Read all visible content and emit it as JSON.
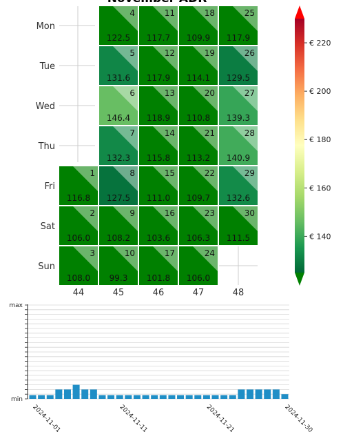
{
  "chart_data": [
    {
      "type": "heatmap",
      "title": "November ADR",
      "weekday_labels": [
        "Mon",
        "Tue",
        "Wed",
        "Thu",
        "Fri",
        "Sat",
        "Sun"
      ],
      "week_labels": [
        "44",
        "45",
        "46",
        "47",
        "48"
      ],
      "cells": [
        {
          "day": "1",
          "week": "44",
          "weekday": "Fri",
          "value": "116.8"
        },
        {
          "day": "2",
          "week": "44",
          "weekday": "Sat",
          "value": "106.0"
        },
        {
          "day": "3",
          "week": "44",
          "weekday": "Sun",
          "value": "108.0"
        },
        {
          "day": "4",
          "week": "45",
          "weekday": "Mon",
          "value": "122.5"
        },
        {
          "day": "5",
          "week": "45",
          "weekday": "Tue",
          "value": "131.6"
        },
        {
          "day": "6",
          "week": "45",
          "weekday": "Wed",
          "value": "146.4"
        },
        {
          "day": "7",
          "week": "45",
          "weekday": "Thu",
          "value": "132.3"
        },
        {
          "day": "8",
          "week": "45",
          "weekday": "Fri",
          "value": "127.5"
        },
        {
          "day": "9",
          "week": "45",
          "weekday": "Sat",
          "value": "108.2"
        },
        {
          "day": "10",
          "week": "45",
          "weekday": "Sun",
          "value": "99.3"
        },
        {
          "day": "11",
          "week": "46",
          "weekday": "Mon",
          "value": "117.7"
        },
        {
          "day": "12",
          "week": "46",
          "weekday": "Tue",
          "value": "117.9"
        },
        {
          "day": "13",
          "week": "46",
          "weekday": "Wed",
          "value": "118.9"
        },
        {
          "day": "14",
          "week": "46",
          "weekday": "Thu",
          "value": "115.8"
        },
        {
          "day": "15",
          "week": "46",
          "weekday": "Fri",
          "value": "111.0"
        },
        {
          "day": "16",
          "week": "46",
          "weekday": "Sat",
          "value": "103.6"
        },
        {
          "day": "17",
          "week": "46",
          "weekday": "Sun",
          "value": "101.8"
        },
        {
          "day": "18",
          "week": "47",
          "weekday": "Mon",
          "value": "109.9"
        },
        {
          "day": "19",
          "week": "47",
          "weekday": "Tue",
          "value": "114.1"
        },
        {
          "day": "20",
          "week": "47",
          "weekday": "Wed",
          "value": "110.8"
        },
        {
          "day": "21",
          "week": "47",
          "weekday": "Thu",
          "value": "113.2"
        },
        {
          "day": "22",
          "week": "47",
          "weekday": "Fri",
          "value": "109.7"
        },
        {
          "day": "23",
          "week": "47",
          "weekday": "Sat",
          "value": "106.3"
        },
        {
          "day": "24",
          "week": "47",
          "weekday": "Sun",
          "value": "106.0"
        },
        {
          "day": "25",
          "week": "48",
          "weekday": "Mon",
          "value": "117.9"
        },
        {
          "day": "26",
          "week": "48",
          "weekday": "Tue",
          "value": "129.5"
        },
        {
          "day": "27",
          "week": "48",
          "weekday": "Wed",
          "value": "139.3"
        },
        {
          "day": "28",
          "week": "48",
          "weekday": "Thu",
          "value": "140.9"
        },
        {
          "day": "29",
          "week": "48",
          "weekday": "Fri",
          "value": "132.6"
        },
        {
          "day": "30",
          "week": "48",
          "weekday": "Sat",
          "value": "111.5"
        }
      ],
      "colorbar": {
        "tick_labels": [
          "€ 140",
          "€ 160",
          "€ 180",
          "€ 200",
          "€ 220"
        ],
        "tick_values": [
          140,
          160,
          180,
          200,
          220
        ],
        "range": [
          125,
          230
        ],
        "extend": "both",
        "colormap": "RdYlGn_r",
        "under_color": "#008000",
        "over_color": "#ff0000"
      }
    },
    {
      "type": "bar",
      "x": [
        "2024-11-01",
        "2024-11-02",
        "2024-11-03",
        "2024-11-04",
        "2024-11-05",
        "2024-11-06",
        "2024-11-07",
        "2024-11-08",
        "2024-11-09",
        "2024-11-10",
        "2024-11-11",
        "2024-11-12",
        "2024-11-13",
        "2024-11-14",
        "2024-11-15",
        "2024-11-16",
        "2024-11-17",
        "2024-11-18",
        "2024-11-19",
        "2024-11-20",
        "2024-11-21",
        "2024-11-22",
        "2024-11-23",
        "2024-11-24",
        "2024-11-25",
        "2024-11-26",
        "2024-11-27",
        "2024-11-28",
        "2024-11-29",
        "2024-11-30"
      ],
      "values": [
        0.4,
        0.4,
        0.4,
        1,
        1,
        1.5,
        1,
        1,
        0.4,
        0.4,
        0.4,
        0.4,
        0.4,
        0.4,
        0.4,
        0.4,
        0.4,
        0.4,
        0.4,
        0.4,
        0.4,
        0.4,
        0.4,
        0.4,
        1,
        1,
        1,
        1,
        1,
        0.5
      ],
      "x_tick_labels": [
        "2024-11-01",
        "2024-11-11",
        "2024-11-21",
        "2024-11-30"
      ],
      "x_tick_days": [
        1,
        11,
        21,
        30
      ],
      "y_tick_labels": [
        "min",
        "max"
      ],
      "ylim": [
        0,
        10
      ],
      "grid": true,
      "bar_color": "#1f8ec6"
    }
  ]
}
